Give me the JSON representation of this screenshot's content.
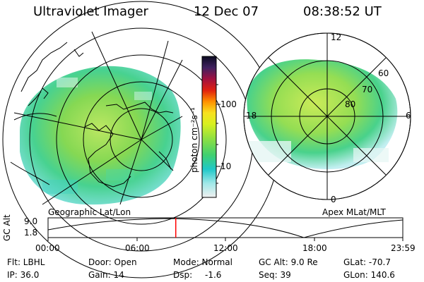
{
  "header": {
    "title": "Ultraviolet Imager",
    "date": "12 Dec 07",
    "time": "08:38:52 UT"
  },
  "colorbar": {
    "label": "photon cm⁻²s⁻¹",
    "ticks": [
      "100",
      "10"
    ]
  },
  "left_panel": {
    "caption": "Geographic Lat/Lon"
  },
  "right_panel": {
    "caption": "Apex MLat/MLT",
    "mlt_labels": {
      "top": "12",
      "left": "18",
      "right": "6",
      "bottom": "0"
    },
    "lat_labels": [
      "60",
      "70",
      "80"
    ]
  },
  "altitude_strip": {
    "axis_label": "GC Alt",
    "y_ticks": [
      "9.0",
      "1.8"
    ],
    "time_ticks": [
      "00:00",
      "06:00",
      "12:00",
      "18:00",
      "23:59"
    ],
    "current_time_fraction": 0.36
  },
  "info": {
    "row1": [
      "Flt: LBHL",
      "Door: Open",
      "Mode: Normal",
      "GC Alt: 9.0 Re",
      "GLat: -70.7"
    ],
    "row2": [
      "IP: 36.0",
      "Gain: 14",
      "Dsp:",
      "-1.6",
      "Seq: 39",
      "GLon: 140.6"
    ]
  },
  "colors": {
    "marker": "#ff0000"
  }
}
